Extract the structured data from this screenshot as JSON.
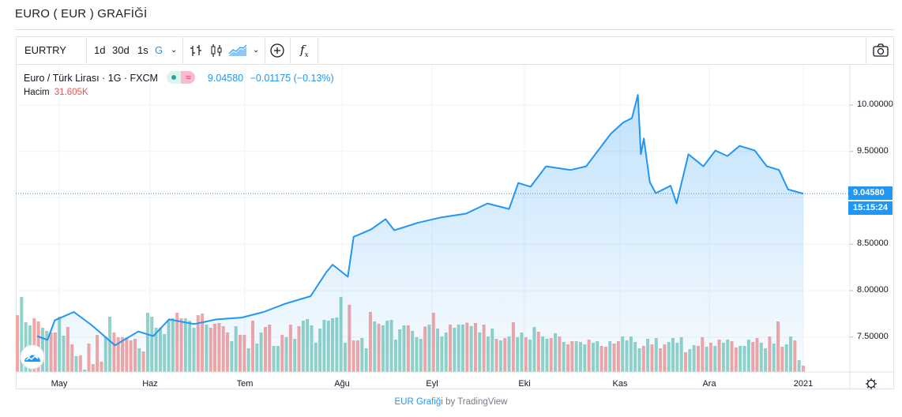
{
  "page_title": "EURO ( EUR ) GRAFİĞİ",
  "toolbar": {
    "symbol": "EURTRY",
    "intervals": [
      "1d",
      "30d",
      "1s",
      "G"
    ],
    "active_interval": "G",
    "icons": [
      "chevron-down-icon",
      "bar-chart-icon",
      "candlestick-icon",
      "area-chart-icon",
      "chevron-down-icon",
      "add-indicator-icon",
      "function-icon",
      "camera-icon"
    ]
  },
  "legend": {
    "name": "Euro / Türk Lirası · 1G · FXCM",
    "badge_symbol": "≈",
    "last": "9.04580",
    "change": "−0.01175 (−0.13%)",
    "volume_label": "Hacim",
    "volume_value": "31.605K"
  },
  "price_label": "9.04580",
  "countdown_label": "15:15:24",
  "footer": {
    "link": "EUR Grafiği",
    "by": "by TradingView"
  },
  "colors": {
    "line": "#2196f3",
    "up_volume": "#92d2c8",
    "down_volume": "#f5a5a3",
    "accent": "#2196f3"
  },
  "chart_data": {
    "type": "area",
    "grid": true,
    "ylim": [
      7.2,
      10.3
    ],
    "y_ticks": [
      "10.00000",
      "9.50000",
      "8.50000",
      "8.00000",
      "7.50000"
    ],
    "x_ticks": [
      "May",
      "Haz",
      "Tem",
      "Ağu",
      "Eyl",
      "Eki",
      "Kas",
      "Ara",
      "2021"
    ],
    "last_price": 9.0458,
    "series": [
      {
        "type": "line",
        "points": [
          [
            "2020-04-16",
            7.51
          ],
          [
            "2020-04-23",
            7.47
          ],
          [
            "2020-04-28",
            7.68
          ],
          [
            "2020-05-06",
            7.77
          ],
          [
            "2020-05-12",
            7.63
          ],
          [
            "2020-05-20",
            7.41
          ],
          [
            "2020-05-28",
            7.56
          ],
          [
            "2020-06-02",
            7.51
          ],
          [
            "2020-06-07",
            7.69
          ],
          [
            "2020-06-15",
            7.64
          ],
          [
            "2020-06-22",
            7.69
          ],
          [
            "2020-06-30",
            7.71
          ],
          [
            "2020-07-07",
            7.77
          ],
          [
            "2020-07-14",
            7.86
          ],
          [
            "2020-07-22",
            7.94
          ],
          [
            "2020-07-27",
            8.2
          ],
          [
            "2020-07-29",
            8.28
          ],
          [
            "2020-08-03",
            8.15
          ],
          [
            "2020-08-05",
            8.58
          ],
          [
            "2020-08-11",
            8.66
          ],
          [
            "2020-08-16",
            8.77
          ],
          [
            "2020-08-19",
            8.65
          ],
          [
            "2020-08-27",
            8.73
          ],
          [
            "2020-09-04",
            8.79
          ],
          [
            "2020-09-12",
            8.83
          ],
          [
            "2020-09-19",
            8.94
          ],
          [
            "2020-09-26",
            8.88
          ],
          [
            "2020-09-29",
            9.16
          ],
          [
            "2020-10-03",
            9.12
          ],
          [
            "2020-10-08",
            9.34
          ],
          [
            "2020-10-16",
            9.3
          ],
          [
            "2020-10-21",
            9.34
          ],
          [
            "2020-10-29",
            9.69
          ],
          [
            "2020-11-02",
            9.81
          ],
          [
            "2020-11-05",
            9.86
          ],
          [
            "2020-11-07",
            10.11
          ],
          [
            "2020-11-08",
            9.47
          ],
          [
            "2020-11-09",
            9.64
          ],
          [
            "2020-11-11",
            9.17
          ],
          [
            "2020-11-13",
            9.05
          ],
          [
            "2020-11-18",
            9.13
          ],
          [
            "2020-11-20",
            8.94
          ],
          [
            "2020-11-24",
            9.47
          ],
          [
            "2020-11-29",
            9.34
          ],
          [
            "2020-12-03",
            9.51
          ],
          [
            "2020-12-07",
            9.45
          ],
          [
            "2020-12-11",
            9.56
          ],
          [
            "2020-12-16",
            9.51
          ],
          [
            "2020-12-20",
            9.34
          ],
          [
            "2020-12-24",
            9.3
          ],
          [
            "2020-12-27",
            9.09
          ],
          [
            "2021-01-01",
            9.0458
          ]
        ]
      },
      {
        "type": "volume",
        "unit": "K",
        "values": [
          288,
          380,
          252,
          236,
          272,
          256,
          224,
          208,
          200,
          200,
          280,
          184,
          228,
          140,
          80,
          84,
          12,
          144,
          40,
          188,
          52,
          180,
          280,
          200,
          176,
          176,
          176,
          160,
          168,
          120,
          104,
          300,
          280,
          224,
          224,
          192,
          264,
          272,
          300,
          272,
          272,
          260,
          224,
          288,
          296,
          240,
          224,
          244,
          248,
          232,
          200,
          156,
          232,
          188,
          188,
          120,
          260,
          144,
          200,
          228,
          240,
          132,
          132,
          188,
          176,
          240,
          168,
          232,
          260,
          268,
          236,
          148,
          220,
          264,
          260,
          272,
          276,
          380,
          148,
          340,
          160,
          160,
          172,
          120,
          304,
          256,
          244,
          236,
          260,
          264,
          164,
          216,
          236,
          236,
          208,
          176,
          168,
          230,
          240,
          300,
          220,
          180,
          200,
          240,
          224,
          240,
          240,
          250,
          232,
          248,
          200,
          240,
          180,
          220,
          168,
          160,
          172,
          180,
          252,
          176,
          200,
          176,
          164,
          228,
          204,
          180,
          168,
          172,
          196,
          180,
          152,
          140,
          156,
          156,
          152,
          140,
          164,
          148,
          156,
          132,
          128,
          156,
          144,
          156,
          180,
          160,
          180,
          152,
          120,
          132,
          168,
          140,
          172,
          120,
          140,
          152,
          172,
          148,
          176,
          100,
          116,
          136,
          132,
          176,
          128,
          148,
          132,
          164,
          148,
          164,
          156,
          124,
          132,
          132,
          164,
          152,
          172,
          148,
          120,
          180,
          144,
          256,
          128,
          140,
          180,
          160,
          60,
          32
        ],
        "direction": "DUUUDDUUDDUUDDUDUDDDDUUDDDDDDUDUUUUUUUDDUUUDDUDDDDDUUDDUDUUDDUUDUDUDUUUUUUUUUUUDDDUUDUDUUUUUUDUUUDUDUUUDUUUDUDUDUUDUDUDUUDUUDUUDUDUDDUUUDUUDDUDDUUUUUDUDUDDUUUUDUUDDUDUDUUDDUUUDDUUDUDDUUDUD"
      }
    ]
  }
}
